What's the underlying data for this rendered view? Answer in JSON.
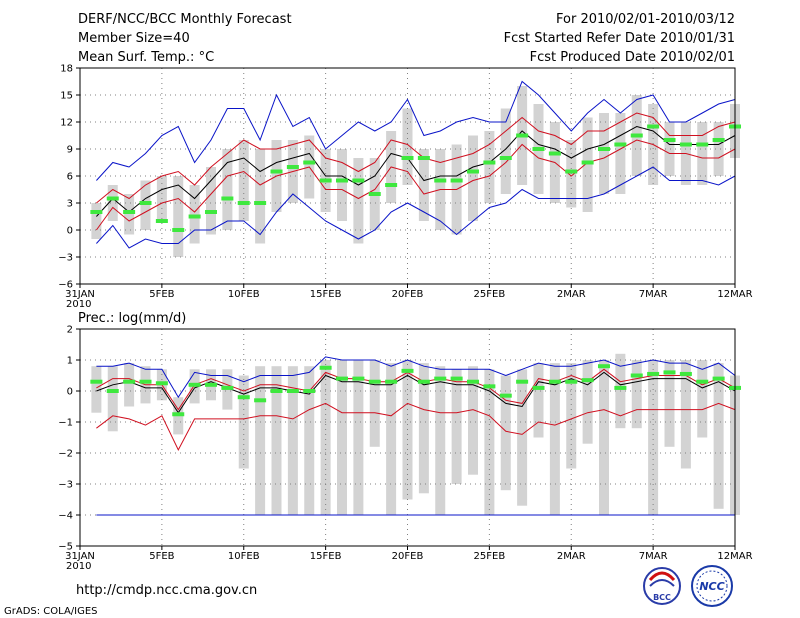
{
  "header": {
    "line1": "DERF/NCC/BCC Monthly Forecast",
    "line2": "Member Size=40",
    "line3": "Mean Surf. Temp.: °C",
    "right1": "For 2010/02/01-2010/03/12",
    "right2": "Fcst Started Refer Date 2010/01/31",
    "right3": "Fcst Produced Date 2010/02/01"
  },
  "footer": {
    "url": "http://cmdp.ncc.cma.gov.cn",
    "grads": "GrADS: COLA/IGES",
    "logo_bcc": "BCC",
    "logo_ncc": "NCC"
  },
  "colors": {
    "box": "#d3d3d3",
    "mean": "#000000",
    "sd": "#d01020",
    "range": "#0a14c8",
    "median": "#3ee83e",
    "grid": "#808080"
  },
  "chart_data": [
    {
      "type": "box",
      "title": "Mean Surf. Temp.: °C",
      "ylim": [
        -6,
        18
      ],
      "yticks": [
        -6,
        -3,
        0,
        3,
        6,
        9,
        12,
        15,
        18
      ],
      "x_tick_labels": [
        "31JAN\n2010",
        "5FEB",
        "10FEB",
        "15FEB",
        "20FEB",
        "25FEB",
        "2MAR",
        "7MAR",
        "12MAR"
      ],
      "x_tick_days": [
        0,
        5,
        10,
        15,
        20,
        25,
        30,
        35,
        40
      ],
      "days": [
        1,
        2,
        3,
        4,
        5,
        6,
        7,
        8,
        9,
        10,
        11,
        12,
        13,
        14,
        15,
        16,
        17,
        18,
        19,
        20,
        21,
        22,
        23,
        24,
        25,
        26,
        27,
        28,
        29,
        30,
        31,
        32,
        33,
        34,
        35,
        36,
        37,
        38,
        39,
        40
      ],
      "box_low": [
        -1,
        1,
        -0.5,
        0,
        1,
        -3,
        -1.5,
        -0.5,
        0,
        1,
        -1.5,
        2,
        3,
        3.5,
        2,
        1,
        -1.5,
        0,
        3,
        5,
        1,
        0,
        -0.5,
        1,
        3,
        4,
        5,
        4,
        3,
        2.5,
        2,
        4,
        4,
        6,
        5,
        6,
        5,
        5,
        6,
        8
      ],
      "box_high": [
        3,
        5,
        4,
        5.5,
        6,
        6,
        5,
        7,
        9,
        10,
        9,
        10,
        10,
        10.5,
        9,
        9,
        8,
        8,
        11,
        13.5,
        9,
        9,
        9.5,
        10.5,
        11,
        13.5,
        16,
        14,
        12,
        10,
        12.5,
        13,
        13,
        15,
        14,
        12,
        12,
        12,
        12,
        14
      ],
      "median": [
        2,
        3.5,
        2,
        3,
        1,
        0,
        1.5,
        2,
        3.5,
        3,
        3,
        6.5,
        7,
        7.5,
        5.5,
        5.5,
        5.5,
        4,
        5,
        8,
        8,
        5.5,
        5.5,
        6.5,
        7.5,
        8,
        10.5,
        9,
        8.5,
        6.5,
        7.5,
        9,
        9.5,
        10.5,
        11.5,
        10,
        9.5,
        9.5,
        10,
        11.5
      ],
      "series": [
        {
          "name": "max",
          "values": [
            5.5,
            7.5,
            7,
            8.5,
            10.5,
            11.5,
            7.5,
            10,
            13.5,
            13.5,
            10,
            15,
            11.5,
            12.5,
            9,
            10.5,
            12,
            11,
            12,
            14.5,
            10.5,
            11,
            12,
            12.5,
            12,
            12,
            16.5,
            15,
            13,
            11,
            13,
            14.5,
            13,
            14.5,
            15,
            12,
            12,
            13,
            14,
            14.5
          ]
        },
        {
          "name": "mean+sd",
          "values": [
            3,
            4.5,
            3.5,
            5,
            6,
            6.5,
            5,
            7,
            8.5,
            10,
            9,
            9,
            9.5,
            10,
            8,
            7.5,
            6.5,
            7.5,
            10,
            9.5,
            8,
            7.5,
            8,
            8.5,
            9.5,
            11,
            12.5,
            11,
            10.5,
            9.5,
            11,
            11,
            12,
            13,
            12.5,
            10.5,
            10.5,
            10.5,
            11.5,
            12
          ]
        },
        {
          "name": "mean",
          "values": [
            1.5,
            3.5,
            2,
            3.5,
            4.5,
            5,
            3.5,
            5.5,
            7.5,
            8,
            6.5,
            7.5,
            8,
            8.5,
            6,
            6,
            5,
            6,
            8.5,
            8,
            5.5,
            6,
            6,
            7,
            7.5,
            9,
            11,
            9.5,
            9,
            8,
            9,
            9.5,
            10.5,
            11.5,
            11,
            9.5,
            9.5,
            9.5,
            9.5,
            10.5
          ]
        },
        {
          "name": "mean-sd",
          "values": [
            0,
            2.5,
            1,
            2,
            3,
            3.5,
            2,
            4,
            6,
            6.5,
            5,
            6,
            6.5,
            7,
            4.5,
            4.5,
            3.5,
            4.5,
            7,
            6.5,
            4,
            4.5,
            4.5,
            5.5,
            6,
            7.5,
            9.5,
            8,
            7.5,
            6,
            7.5,
            8,
            9,
            10,
            9.5,
            8.5,
            8.5,
            8,
            8,
            9
          ]
        },
        {
          "name": "min",
          "values": [
            -1.5,
            0.5,
            -2,
            -1,
            -1.5,
            -1.5,
            0,
            0,
            1,
            1,
            -0.5,
            2,
            4,
            2.5,
            1,
            0,
            -1,
            0,
            2,
            3,
            2,
            1,
            -0.5,
            1,
            2.5,
            3,
            4.5,
            3.5,
            3.5,
            3.5,
            3.5,
            4,
            5,
            6,
            7,
            5.5,
            5.5,
            5.5,
            5,
            6
          ]
        }
      ]
    },
    {
      "type": "box",
      "title": "Prec.: log(mm/d)",
      "ylim": [
        -5,
        2
      ],
      "yticks": [
        -5,
        -4,
        -3,
        -2,
        -1,
        0,
        1,
        2
      ],
      "x_tick_labels": [
        "31JAN\n2010",
        "5FEB",
        "10FEB",
        "15FEB",
        "20FEB",
        "25FEB",
        "2MAR",
        "7MAR",
        "12MAR"
      ],
      "x_tick_days": [
        0,
        5,
        10,
        15,
        20,
        25,
        30,
        35,
        40
      ],
      "days": [
        1,
        2,
        3,
        4,
        5,
        6,
        7,
        8,
        9,
        10,
        11,
        12,
        13,
        14,
        15,
        16,
        17,
        18,
        19,
        20,
        21,
        22,
        23,
        24,
        25,
        26,
        27,
        28,
        29,
        30,
        31,
        32,
        33,
        34,
        35,
        36,
        37,
        38,
        39,
        40
      ],
      "box_low": [
        -0.7,
        -1.3,
        -0.5,
        -0.4,
        -0.3,
        -1.4,
        -0.4,
        -0.3,
        -0.6,
        -2.5,
        -4,
        -4,
        -4,
        -4,
        -4,
        -4,
        -4,
        -1.8,
        -4,
        -3.5,
        -3.3,
        -4,
        -3,
        -2.7,
        -4,
        -3.2,
        -3.7,
        -1.5,
        -4,
        -2.5,
        -1.7,
        -4,
        -1.2,
        -1.2,
        -4,
        -1.8,
        -2.5,
        -1.5,
        -3.8,
        -4
      ],
      "box_high": [
        0.8,
        0.8,
        0.9,
        0.8,
        0.7,
        -0.2,
        0.7,
        0.7,
        0.7,
        0.5,
        0.8,
        0.8,
        0.8,
        0.8,
        1.0,
        1.0,
        1.0,
        1.0,
        0.9,
        1.0,
        0.9,
        0.8,
        0.7,
        0.8,
        0.7,
        0.5,
        0.7,
        0.9,
        0.9,
        0.9,
        1.0,
        1.0,
        1.2,
        1.0,
        1.0,
        1.0,
        1.0,
        1.0,
        0.9,
        0.5
      ],
      "median": [
        0.3,
        0.0,
        0.3,
        0.3,
        0.25,
        -0.75,
        0.2,
        0.2,
        0.1,
        -0.2,
        -0.3,
        0.0,
        0.0,
        0.0,
        0.75,
        0.4,
        0.4,
        0.3,
        0.3,
        0.65,
        0.3,
        0.4,
        0.4,
        0.3,
        0.15,
        -0.15,
        0.3,
        0.1,
        0.3,
        0.3,
        0.35,
        0.8,
        0.1,
        0.5,
        0.55,
        0.6,
        0.55,
        0.3,
        0.4,
        0.1
      ],
      "series": [
        {
          "name": "max",
          "values": [
            0.8,
            0.8,
            0.9,
            0.7,
            0.7,
            -0.2,
            0.6,
            0.5,
            0.5,
            0.3,
            0.5,
            0.5,
            0.5,
            0.6,
            1.1,
            1.0,
            1.0,
            1.0,
            0.8,
            1.0,
            0.8,
            0.7,
            0.7,
            0.7,
            0.7,
            0.5,
            0.7,
            0.9,
            0.8,
            0.8,
            0.9,
            1.0,
            0.8,
            0.9,
            1.0,
            0.9,
            0.9,
            0.7,
            0.9,
            0.5
          ]
        },
        {
          "name": "mean+sd",
          "values": [
            0.1,
            0.4,
            0.4,
            0.2,
            0.2,
            -0.6,
            0.2,
            0.4,
            0.2,
            0.0,
            0.2,
            0.2,
            0.1,
            0.0,
            0.6,
            0.4,
            0.4,
            0.3,
            0.3,
            0.6,
            0.3,
            0.4,
            0.3,
            0.3,
            0.1,
            -0.3,
            -0.4,
            0.4,
            0.3,
            0.5,
            0.3,
            0.7,
            0.3,
            0.4,
            0.5,
            0.5,
            0.5,
            0.2,
            0.4,
            0.1
          ]
        },
        {
          "name": "mean",
          "values": [
            0.0,
            0.2,
            0.3,
            0.1,
            0.1,
            -0.7,
            0.1,
            0.3,
            0.1,
            -0.1,
            0.1,
            0.1,
            0.0,
            -0.1,
            0.5,
            0.3,
            0.3,
            0.2,
            0.2,
            0.5,
            0.2,
            0.3,
            0.2,
            0.2,
            0.0,
            -0.4,
            -0.5,
            0.3,
            0.2,
            0.4,
            0.2,
            0.6,
            0.2,
            0.3,
            0.4,
            0.4,
            0.4,
            0.1,
            0.3,
            0.0
          ]
        },
        {
          "name": "mean-sd",
          "values": [
            -1.2,
            -0.8,
            -0.9,
            -1.1,
            -0.8,
            -1.9,
            -0.9,
            -0.9,
            -0.9,
            -0.9,
            -0.8,
            -0.8,
            -0.9,
            -0.6,
            -0.4,
            -0.7,
            -0.7,
            -0.7,
            -0.8,
            -0.4,
            -0.6,
            -0.7,
            -0.7,
            -0.6,
            -0.8,
            -1.3,
            -1.4,
            -1.0,
            -1.1,
            -0.9,
            -0.7,
            -0.6,
            -0.8,
            -0.6,
            -0.6,
            -0.6,
            -0.6,
            -0.6,
            -0.4,
            -0.6
          ]
        },
        {
          "name": "min",
          "values": [
            -4,
            -4,
            -4,
            -4,
            -4,
            -4,
            -4,
            -4,
            -4,
            -4,
            -4,
            -4,
            -4,
            -4,
            -4,
            -4,
            -4,
            -4,
            -4,
            -4,
            -4,
            -4,
            -4,
            -4,
            -4,
            -4,
            -4,
            -4,
            -4,
            -4,
            -4,
            -4,
            -4,
            -4,
            -4,
            -4,
            -4,
            -4,
            -4,
            -4
          ]
        }
      ]
    }
  ]
}
